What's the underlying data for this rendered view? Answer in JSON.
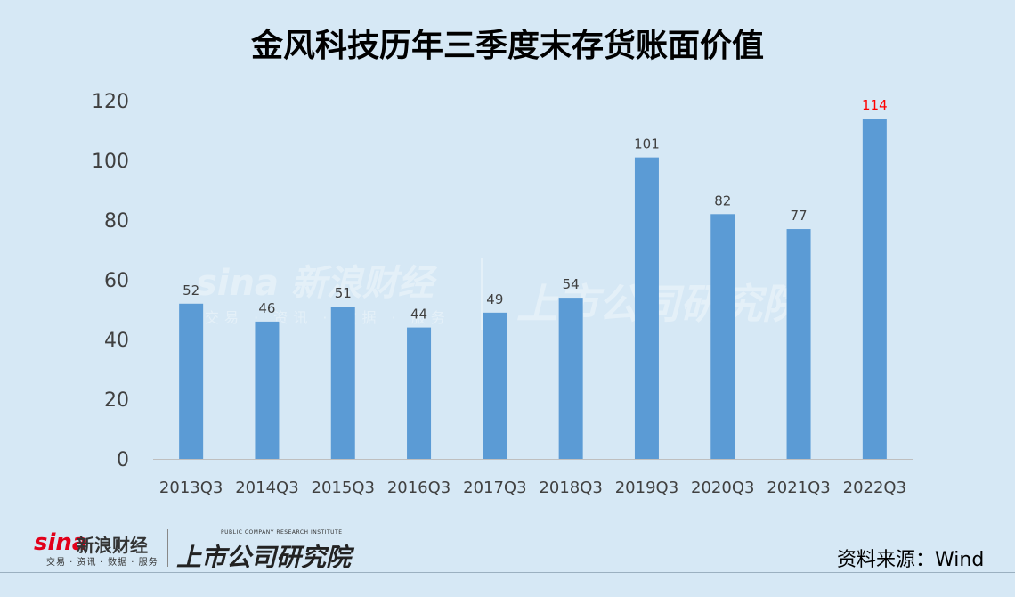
{
  "title": "金风科技历年三季度末存货账面价值",
  "source": "资料来源：Wind",
  "logo": {
    "sina": "sina",
    "sina_cn": "新浪财经",
    "sina_sub": "交易 · 资讯 · 数据 · 服务",
    "institute_cn": "上市公司研究院",
    "institute_en": "PUBLIC COMPANY RESEARCH INSTITUTE"
  },
  "colors": {
    "background": "#d6e8f5",
    "bar": "#5b9bd5",
    "highlight_label": "#ff0000",
    "label": "#404040"
  },
  "chart_data": {
    "type": "bar",
    "title": "金风科技历年三季度末存货账面价值",
    "categories": [
      "2013Q3",
      "2014Q3",
      "2015Q3",
      "2016Q3",
      "2017Q3",
      "2018Q3",
      "2019Q3",
      "2020Q3",
      "2021Q3",
      "2022Q3"
    ],
    "values": [
      52,
      46,
      51,
      44,
      49,
      54,
      101,
      82,
      77,
      114
    ],
    "ylim": [
      0,
      120
    ],
    "yticks": [
      0,
      20,
      40,
      60,
      80,
      100,
      120
    ],
    "grid": false,
    "highlight_index": 9
  }
}
